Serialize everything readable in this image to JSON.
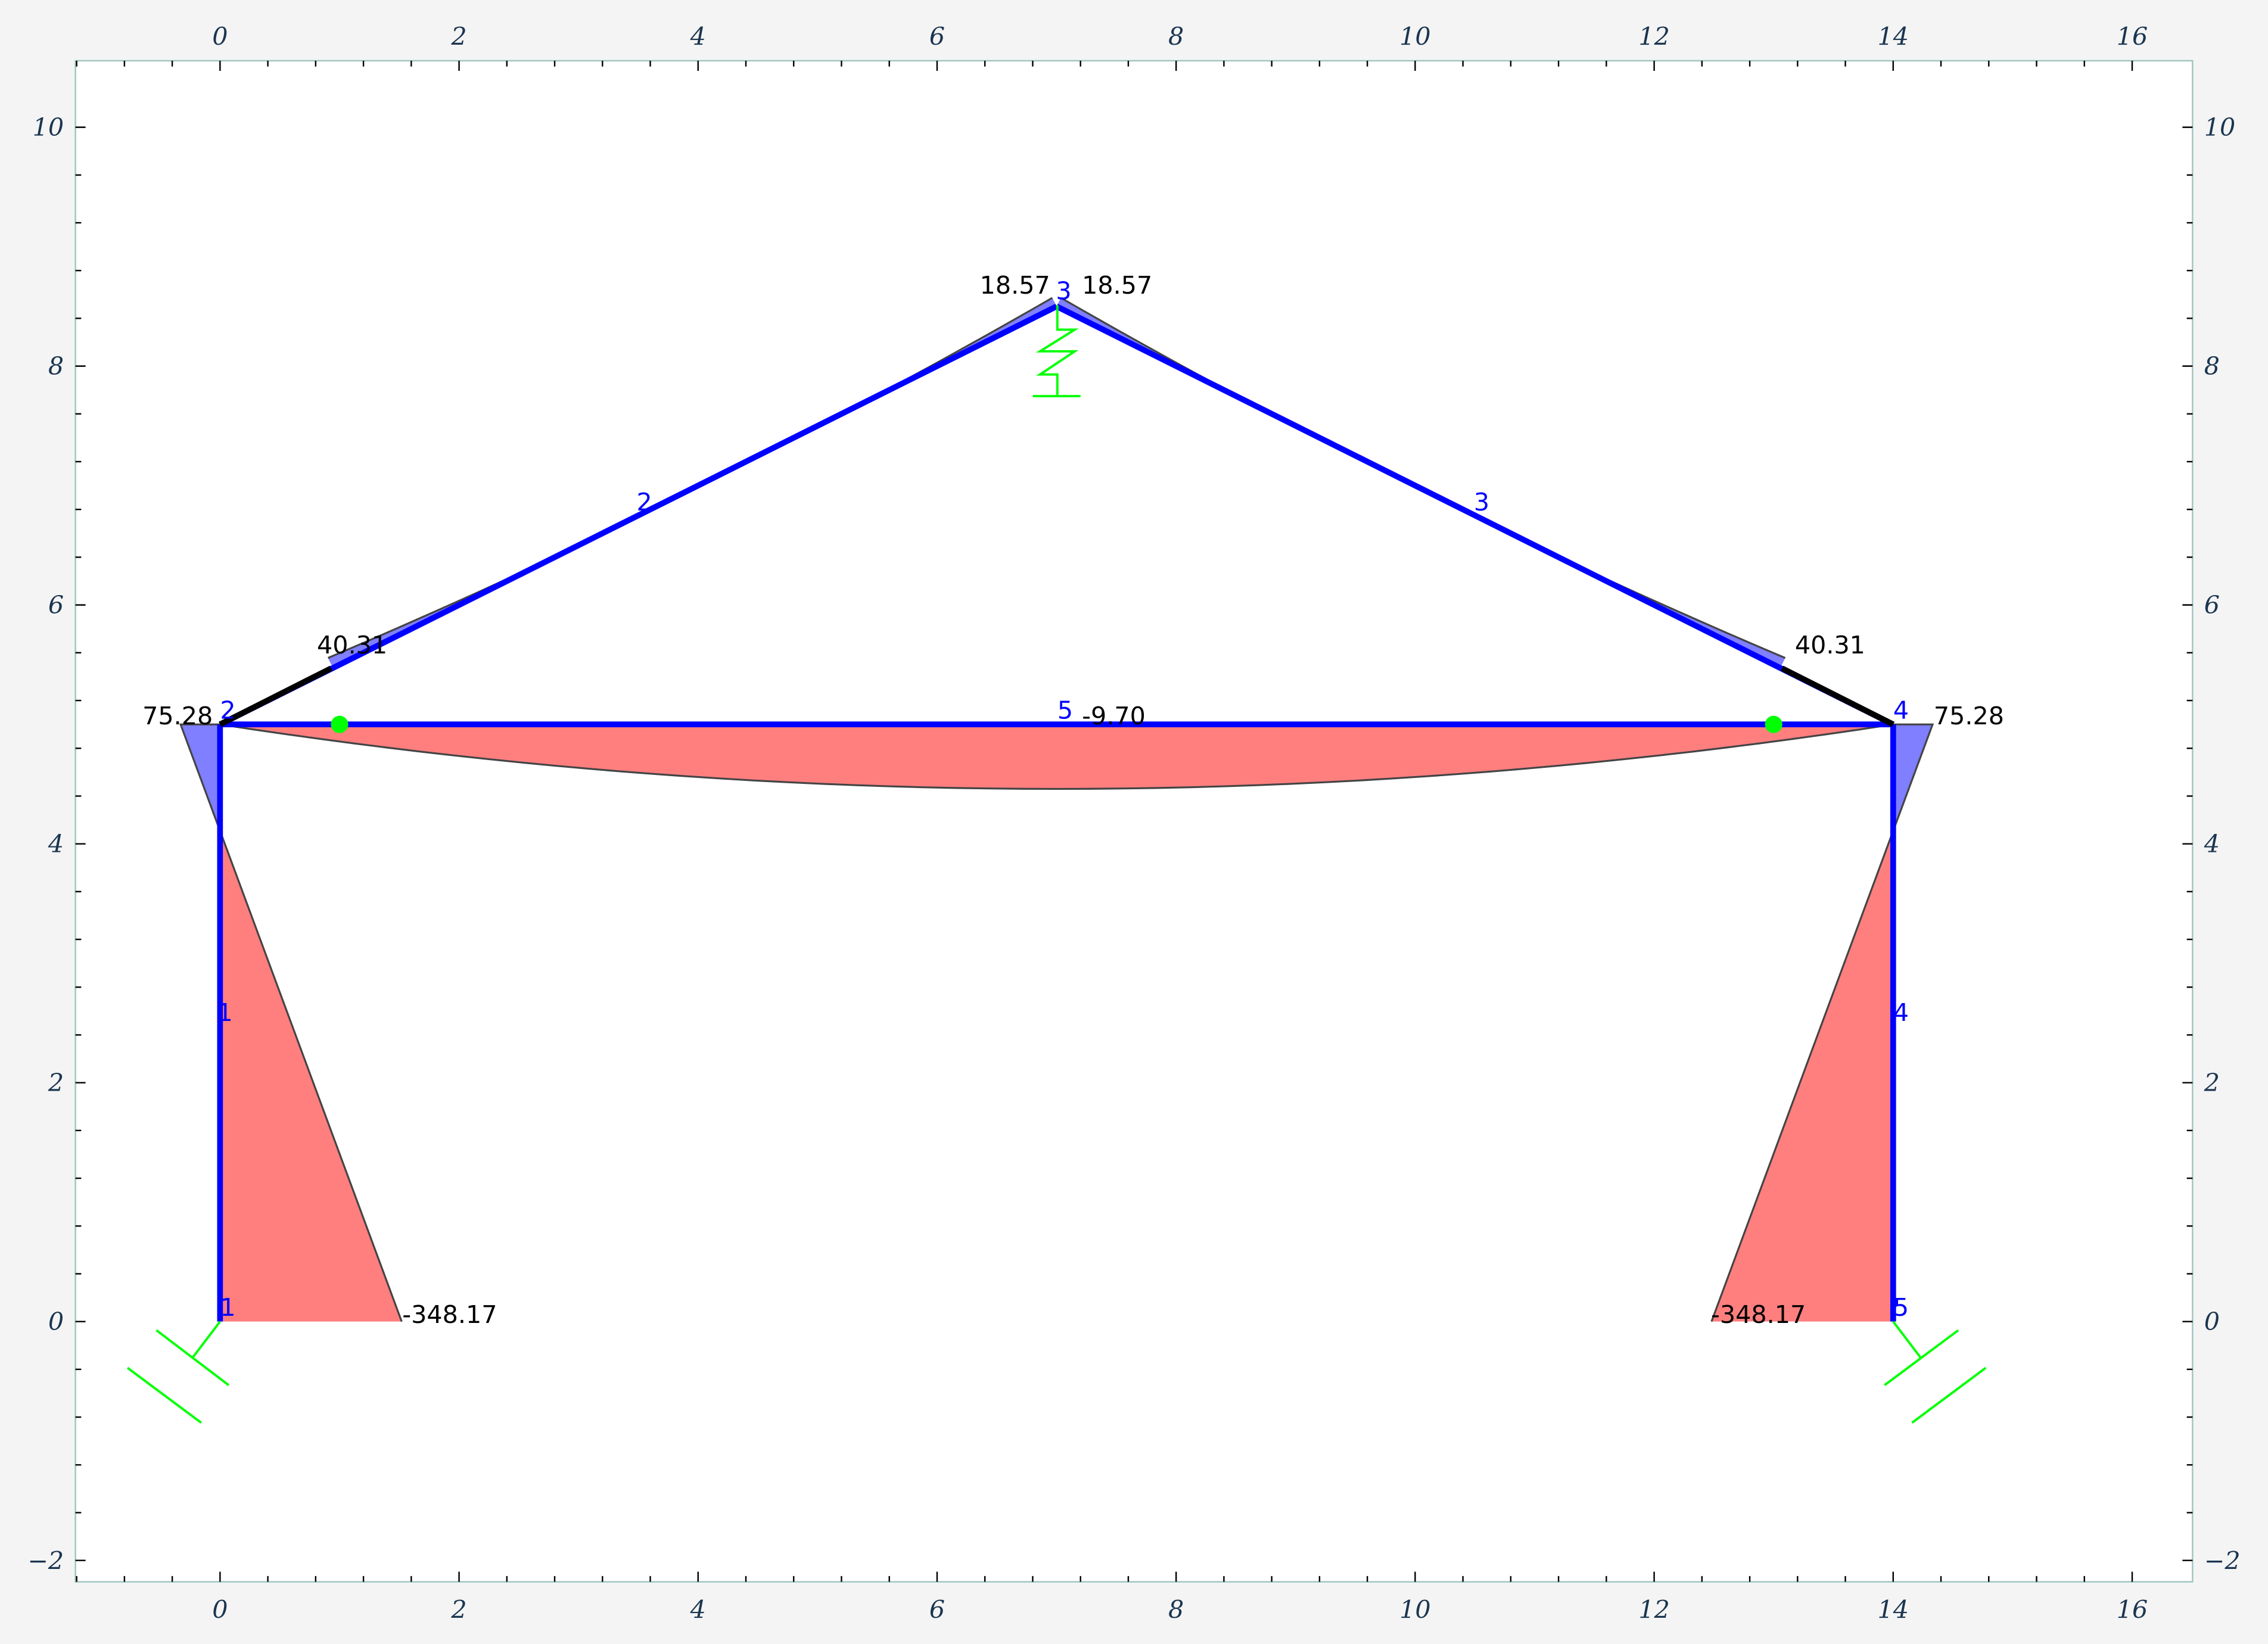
{
  "axes": {
    "xlim": [
      -1.2,
      16.5
    ],
    "ylim": [
      -2.2,
      10.55
    ],
    "x_ticks": [
      0,
      2,
      4,
      6,
      8,
      10,
      12,
      14,
      16
    ],
    "y_ticks": [
      -2,
      0,
      2,
      4,
      6,
      8,
      10
    ],
    "x_tick_labels": [
      "0",
      "2",
      "4",
      "6",
      "8",
      "10",
      "12",
      "14",
      "16"
    ],
    "y_tick_labels": [
      "−2",
      "0",
      "2",
      "4",
      "6",
      "8",
      "10"
    ],
    "frame_color": "#9fc5c0"
  },
  "colors": {
    "element": "#0000ff",
    "positive_moment": "#ff0000",
    "negative_moment": "#0000ff",
    "support": "#00ff00",
    "rigid_end": "#000000"
  },
  "nodes": [
    {
      "id": "1",
      "x": 0,
      "y": 0
    },
    {
      "id": "2",
      "x": 0,
      "y": 5
    },
    {
      "id": "3",
      "x": 7,
      "y": 8.5
    },
    {
      "id": "4",
      "x": 14,
      "y": 5
    },
    {
      "id": "5",
      "x": 14,
      "y": 0
    }
  ],
  "elements": [
    {
      "id": "1",
      "from": [
        0,
        0
      ],
      "to": [
        0,
        5
      ]
    },
    {
      "id": "2",
      "from": [
        0,
        5
      ],
      "to": [
        7,
        8.5
      ]
    },
    {
      "id": "3",
      "from": [
        7,
        8.5
      ],
      "to": [
        14,
        5
      ]
    },
    {
      "id": "4",
      "from": [
        14,
        5
      ],
      "to": [
        14,
        0
      ]
    },
    {
      "id": "5",
      "from": [
        0,
        5
      ],
      "to": [
        14,
        5
      ]
    }
  ],
  "hinges": [
    [
      1,
      5
    ],
    [
      13,
      5
    ]
  ],
  "moment_labels": {
    "left_base": "-348.17",
    "right_base": "-348.17",
    "left_joint": "75.28",
    "right_joint": "75.28",
    "left_rafter": "40.31",
    "right_rafter": "40.31",
    "apex_a": "18.57",
    "apex_b": "18.57",
    "tie": "-9.70"
  },
  "supports": [
    "inclined-roller-left",
    "inclined-roller-right",
    "spring-apex"
  ]
}
